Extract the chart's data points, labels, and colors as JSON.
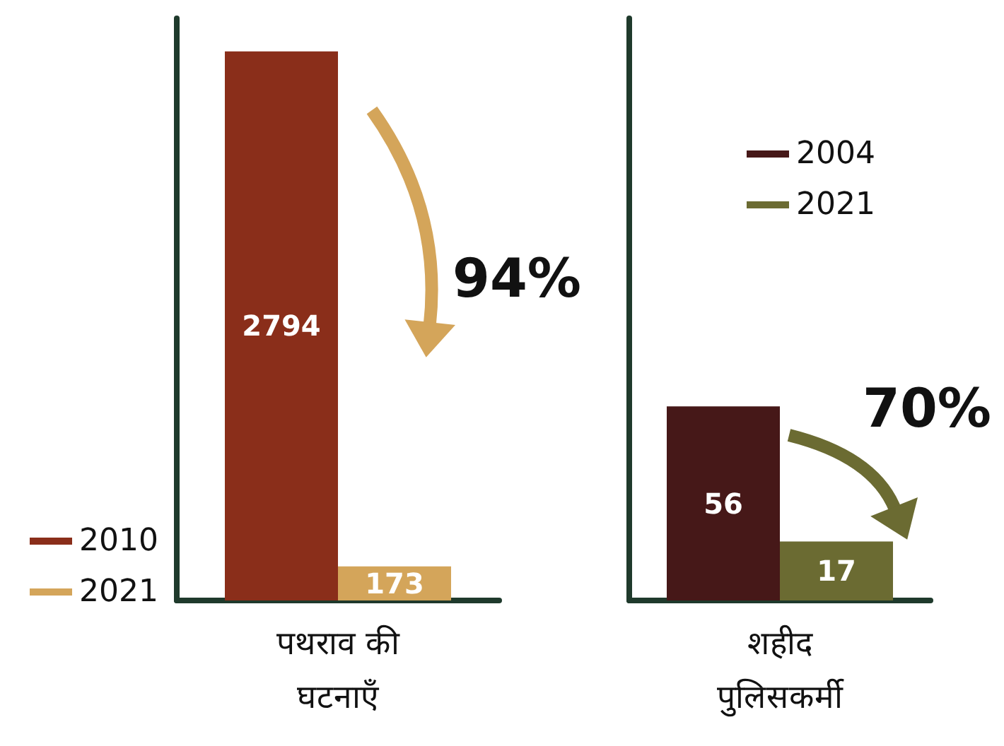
{
  "chart_data": [
    {
      "type": "bar",
      "categories": [
        "पथराव की घटनाएँ"
      ],
      "series": [
        {
          "name": "2010",
          "color": "#8a2e1a",
          "values": [
            2794
          ]
        },
        {
          "name": "2021",
          "color": "#d4a55a",
          "values": [
            173
          ]
        }
      ],
      "data_labels": true,
      "tick_labels": "x",
      "legend": "left",
      "grid": false,
      "annotations": [
        "94%"
      ]
    },
    {
      "type": "bar",
      "categories": [
        "शहीद पुलिसकर्मी"
      ],
      "series": [
        {
          "name": "2004",
          "color": "#461818",
          "values": [
            56
          ]
        },
        {
          "name": "2021",
          "color": "#6b6b32",
          "values": [
            17
          ]
        }
      ],
      "data_labels": true,
      "tick_labels": "x",
      "legend": "top",
      "grid": false,
      "annotations": [
        "70%"
      ]
    }
  ]
}
